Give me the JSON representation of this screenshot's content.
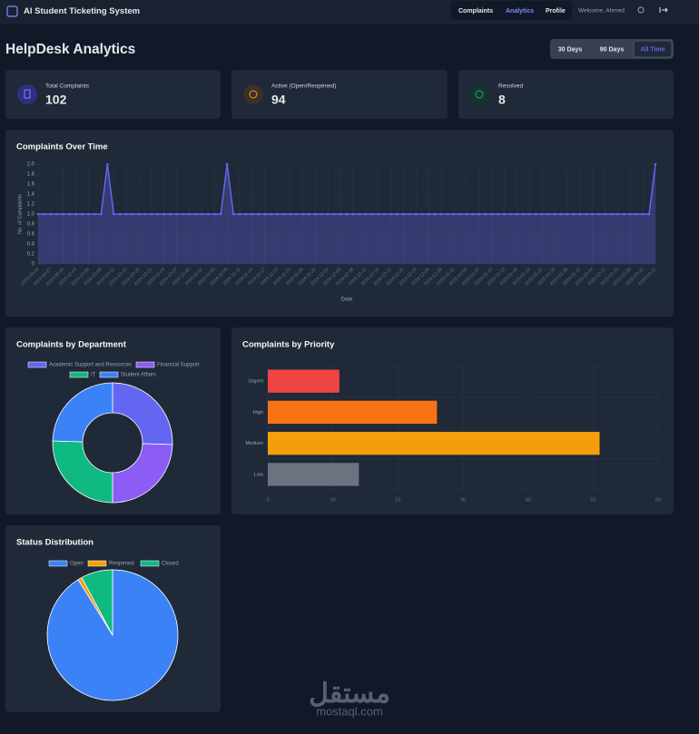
{
  "nav": {
    "brand": "AI Student Ticketing System",
    "links": [
      "Complaints",
      "Analytics",
      "Profile"
    ],
    "welcome": "Welcome, Ahmed"
  },
  "header": {
    "title": "HelpDesk Analytics",
    "ranges": [
      "30 Days",
      "90 Days",
      "All Time"
    ]
  },
  "stats": [
    {
      "label": "Total Complaints",
      "value": 102
    },
    {
      "label": "Active (Open/Reopened)",
      "value": 94
    },
    {
      "label": "Resolved",
      "value": 8
    }
  ],
  "chart_data": [
    {
      "type": "line",
      "title": "Complaints Over Time",
      "x": [
        "2024-09-24",
        null,
        "2024-09-27",
        null,
        "2024-09-30",
        null,
        "2024-10-03",
        null,
        "2024-10-06",
        null,
        "2024-10-09",
        null,
        "2024-10-12",
        null,
        "2024-10-15",
        null,
        "2024-10-18",
        null,
        "2024-10-21",
        null,
        "2024-10-24",
        null,
        "2024-10-27",
        null,
        "2024-10-30",
        null,
        "2024-11-02",
        null,
        "2024-11-05",
        null,
        "2024-11-08",
        null,
        "2024-11-11",
        null,
        "2024-11-14",
        null,
        "2024-11-17",
        null,
        "2024-11-20",
        null,
        "2024-11-23",
        null,
        "2024-11-26",
        null,
        "2024-11-29",
        null,
        "2024-12-02",
        null,
        "2024-12-05",
        null,
        "2024-12-08",
        null,
        "2024-12-11",
        null,
        "2024-12-14",
        null,
        "2024-12-17",
        null,
        "2024-12-20",
        null,
        "2024-12-23",
        null,
        "2024-12-26",
        null,
        "2024-12-29",
        null,
        "2025-01-01",
        null,
        "2025-01-04",
        null,
        "2025-01-07",
        null,
        "2025-01-10",
        null,
        "2025-01-13",
        null,
        "2025-01-16",
        null,
        "2025-01-19",
        null,
        "2025-01-22",
        null,
        "2025-01-25",
        null,
        "2025-01-28",
        null,
        "2025-01-31",
        null,
        "2025-02-04",
        null,
        "2025-02-12",
        null,
        "2025-02-20",
        null,
        "2025-02-28",
        null,
        "2025-03-10",
        null,
        "2025-03-22"
      ],
      "values": [
        1,
        1,
        1,
        1,
        1,
        1,
        1,
        1,
        1,
        1,
        1,
        2,
        1,
        1,
        1,
        1,
        1,
        1,
        1,
        1,
        1,
        1,
        1,
        1,
        1,
        1,
        1,
        1,
        1,
        1,
        2,
        1,
        1,
        1,
        1,
        1,
        1,
        1,
        1,
        1,
        1,
        1,
        1,
        1,
        1,
        1,
        1,
        1,
        1,
        1,
        1,
        1,
        1,
        1,
        1,
        1,
        1,
        1,
        1,
        1,
        1,
        1,
        1,
        1,
        1,
        1,
        1,
        1,
        1,
        1,
        1,
        1,
        1,
        1,
        1,
        1,
        1,
        1,
        1,
        1,
        1,
        1,
        1,
        1,
        1,
        1,
        1,
        1,
        1,
        1,
        1,
        1,
        1,
        1,
        1,
        1,
        1,
        1,
        2
      ],
      "color": "#6366f1",
      "ylim": [
        0,
        2
      ],
      "yticks": [
        0,
        0.2,
        0.4,
        0.6,
        0.8,
        {
          "value": 1,
          "label": "1.0"
        },
        1.2,
        1.4,
        1.6,
        1.8,
        {
          "value": 2,
          "label": "2.0"
        }
      ],
      "ylabel": "No. of Complaints",
      "xlabel": "Date",
      "grid": true
    },
    {
      "type": "doughnut",
      "title": "Complaints by Department",
      "categories": [
        "Academic Support and Resources",
        "Financial Support",
        "IT",
        "Student Affairs"
      ],
      "values": [
        26,
        25,
        26,
        25
      ],
      "colors": [
        "#6366f1",
        "#8b5cf6",
        "#10b981",
        "#3b82f6"
      ]
    },
    {
      "type": "bar",
      "orientation": "horizontal",
      "title": "Complaints by Priority",
      "categories": [
        "Urgent",
        "High",
        "Medium",
        "Low"
      ],
      "values": [
        11,
        26,
        51,
        14
      ],
      "colors": [
        "#ef4444",
        "#f97316",
        "#f59e0b",
        "#6b7280"
      ],
      "xlim": [
        0,
        60
      ],
      "xticks": [
        0,
        10,
        20,
        30,
        40,
        50,
        60
      ],
      "grid": true
    },
    {
      "type": "pie",
      "title": "Status Distribution",
      "categories": [
        "Open",
        "Reopened",
        "Closed"
      ],
      "values": [
        93,
        1,
        8
      ],
      "colors": [
        "#3b82f6",
        "#f59e0b",
        "#10b981"
      ]
    }
  ],
  "watermark": {
    "arabic": "مستقل",
    "latin": "mostaql.com"
  }
}
